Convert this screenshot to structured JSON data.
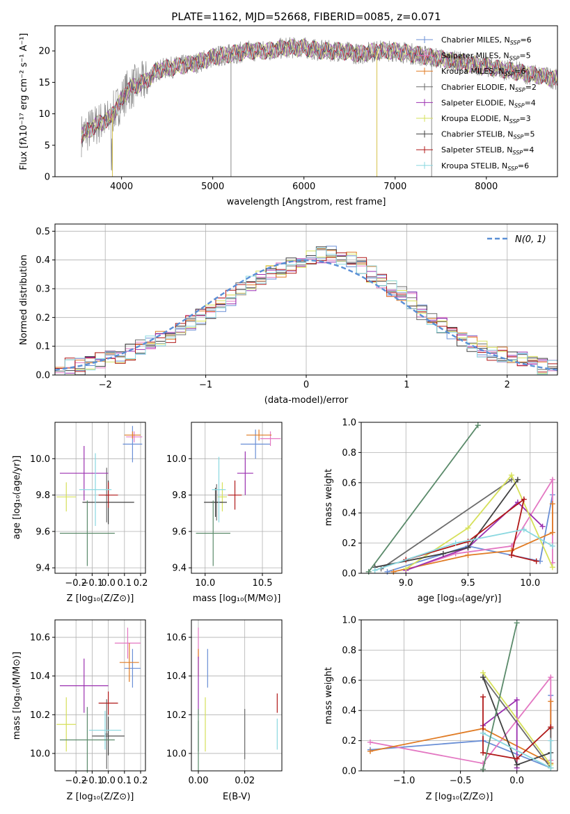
{
  "figure_title": "PLATE=1162, MJD=52668, FIBERID=0085, z=0.071",
  "legend_colors": [
    "#6a8fd6",
    "#e377c2",
    "#e07b24",
    "#6b6b6b",
    "#9b30b0",
    "#d6e05a",
    "#404040",
    "#b01818",
    "#8ad8e0"
  ],
  "model_colors": [
    "#6a8fd6",
    "#e377c2",
    "#e07b24",
    "#6b6b6b",
    "#9b30b0",
    "#d6e05a",
    "#404040",
    "#b01818",
    "#8ad8e0",
    "#5a8a6a"
  ],
  "chart_data": [
    {
      "type": "line",
      "id": "spectrum",
      "title": "PLATE=1162, MJD=52668, FIBERID=0085, z=0.071",
      "xlabel": "wavelength [Angstrom, rest frame]",
      "ylabel": "Flux [fλ10⁻¹⁷ erg cm⁻² s⁻¹ A⁻¹]",
      "xlim": [
        3270,
        8780
      ],
      "ylim": [
        0,
        24
      ],
      "xticks": [
        4000,
        5000,
        6000,
        7000,
        8000
      ],
      "yticks": [
        0,
        5,
        10,
        15,
        20
      ],
      "grid": false,
      "legend_position": "right",
      "continuum": {
        "x": [
          3550,
          3650,
          3750,
          3850,
          3950,
          4050,
          4150,
          4250,
          4400,
          4600,
          4800,
          5000,
          5200,
          5400,
          5600,
          5800,
          6000,
          6200,
          6400,
          6600,
          6800,
          7000,
          7200,
          7400,
          7600,
          7800,
          8000,
          8200,
          8400,
          8600,
          8780
        ],
        "y": [
          6.5,
          7.5,
          8.5,
          9.0,
          11.0,
          13.5,
          14.5,
          15.0,
          17.0,
          17.5,
          18.0,
          19.0,
          19.5,
          20.0,
          20.0,
          20.5,
          20.5,
          20.0,
          20.0,
          19.5,
          20.0,
          20.0,
          19.5,
          19.0,
          18.5,
          18.0,
          17.5,
          17.0,
          16.5,
          16.0,
          15.5
        ]
      },
      "series": [
        {
          "name": "Chabrier MILES, N",
          "sub": "SSP",
          "suffix": "=6"
        },
        {
          "name": "Salpeter MILES, N",
          "sub": "SSP",
          "suffix": "=5"
        },
        {
          "name": "Kroupa MILES, N",
          "sub": "SSP",
          "suffix": "=6"
        },
        {
          "name": "Chabrier ELODIE, N",
          "sub": "SSP",
          "suffix": "=2"
        },
        {
          "name": "Salpeter ELODIE, N",
          "sub": "SSP",
          "suffix": "=4"
        },
        {
          "name": "Kroupa ELODIE, N",
          "sub": "SSP",
          "suffix": "=3"
        },
        {
          "name": "Chabrier STELIB, N",
          "sub": "SSP",
          "suffix": "=5"
        },
        {
          "name": "Salpeter STELIB, N",
          "sub": "SSP",
          "suffix": "=4"
        },
        {
          "name": "Kroupa STELIB, N",
          "sub": "SSP",
          "suffix": "=6"
        }
      ]
    },
    {
      "type": "line",
      "id": "residuals",
      "xlabel": "(data-model)/error",
      "ylabel": "Normed distribution",
      "xlim": [
        -2.5,
        2.5
      ],
      "ylim": [
        0,
        0.525
      ],
      "xticks": [
        -2,
        -1,
        0,
        1,
        2
      ],
      "yticks": [
        0.0,
        0.1,
        0.2,
        0.3,
        0.4,
        0.5
      ],
      "grid": true,
      "legend": {
        "label": "N(0, 1)",
        "position": "top-right"
      },
      "gaussian": {
        "mean": 0,
        "sigma": 1
      },
      "bin_edges": [
        -2.5,
        -2.4,
        -2.3,
        -2.2,
        -2.1,
        -2.0,
        -1.9,
        -1.8,
        -1.7,
        -1.6,
        -1.5,
        -1.4,
        -1.3,
        -1.2,
        -1.1,
        -1.0,
        -0.9,
        -0.8,
        -0.7,
        -0.6,
        -0.5,
        -0.4,
        -0.3,
        -0.2,
        -0.1,
        0.0,
        0.1,
        0.2,
        0.3,
        0.4,
        0.5,
        0.6,
        0.7,
        0.8,
        0.9,
        1.0,
        1.1,
        1.2,
        1.3,
        1.4,
        1.5,
        1.6,
        1.7,
        1.8,
        1.9,
        2.0,
        2.1,
        2.2,
        2.3,
        2.4,
        2.5
      ],
      "hist_approx": [
        0.02,
        0.03,
        0.03,
        0.04,
        0.05,
        0.06,
        0.07,
        0.08,
        0.1,
        0.11,
        0.13,
        0.14,
        0.16,
        0.18,
        0.2,
        0.22,
        0.25,
        0.27,
        0.3,
        0.32,
        0.34,
        0.36,
        0.37,
        0.38,
        0.4,
        0.41,
        0.42,
        0.42,
        0.41,
        0.4,
        0.38,
        0.35,
        0.33,
        0.3,
        0.28,
        0.26,
        0.22,
        0.2,
        0.17,
        0.15,
        0.13,
        0.11,
        0.09,
        0.08,
        0.07,
        0.06,
        0.05,
        0.04,
        0.03,
        0.03
      ]
    },
    {
      "type": "scatter",
      "id": "age-vs-z",
      "xlabel": "Z [log₁₀(Z/Z⊙)]",
      "ylabel": "age  [log₁₀(age/yr)]",
      "xlim": [
        -0.33,
        0.23
      ],
      "ylim": [
        9.37,
        10.2
      ],
      "xticks": [
        -0.2,
        -0.1,
        0.0,
        0.1,
        0.2
      ],
      "yticks": [
        9.4,
        9.6,
        9.8,
        10.0
      ],
      "grid": true,
      "points": [
        {
          "x": 0.15,
          "y": 10.08,
          "dx": 0.06,
          "dy": 0.1,
          "c": 0
        },
        {
          "x": 0.16,
          "y": 10.12,
          "dx": 0.05,
          "dy": 0.03,
          "c": 1
        },
        {
          "x": 0.15,
          "y": 10.13,
          "dx": 0.05,
          "dy": 0.02,
          "c": 2
        },
        {
          "x": -0.01,
          "y": 9.8,
          "dx": 0.01,
          "dy": 0.15,
          "c": 3
        },
        {
          "x": -0.15,
          "y": 9.92,
          "dx": 0.15,
          "dy": 0.15,
          "c": 4
        },
        {
          "x": -0.26,
          "y": 9.79,
          "dx": 0.06,
          "dy": 0.08,
          "c": 5
        },
        {
          "x": 0.0,
          "y": 9.76,
          "dx": 0.16,
          "dy": 0.12,
          "c": 6
        },
        {
          "x": 0.0,
          "y": 9.8,
          "dx": 0.06,
          "dy": 0.07,
          "c": 7
        },
        {
          "x": -0.08,
          "y": 9.83,
          "dx": 0.1,
          "dy": 0.2,
          "c": 8
        },
        {
          "x": -0.13,
          "y": 9.59,
          "dx": 0.17,
          "dy": 0.18,
          "c": 9
        }
      ]
    },
    {
      "type": "scatter",
      "id": "age-vs-mass",
      "xlabel": "mass [log₁₀(M/M⊙)]",
      "ylabel": "",
      "xlim": [
        9.88,
        10.67
      ],
      "ylim": [
        9.37,
        10.2
      ],
      "xticks": [
        10.0,
        10.5
      ],
      "yticks": [
        9.4,
        9.6,
        9.8,
        10.0
      ],
      "grid": true,
      "points": [
        {
          "x": 10.44,
          "y": 10.08,
          "dx": 0.13,
          "dy": 0.08,
          "c": 0
        },
        {
          "x": 10.57,
          "y": 10.11,
          "dx": 0.09,
          "dy": 0.04,
          "c": 1
        },
        {
          "x": 10.47,
          "y": 10.13,
          "dx": 0.11,
          "dy": 0.03,
          "c": 2
        },
        {
          "x": 10.1,
          "y": 9.76,
          "dx": 0.05,
          "dy": 0.1,
          "c": 3
        },
        {
          "x": 10.35,
          "y": 9.92,
          "dx": 0.07,
          "dy": 0.12,
          "c": 4
        },
        {
          "x": 10.15,
          "y": 9.79,
          "dx": 0.04,
          "dy": 0.08,
          "c": 5
        },
        {
          "x": 10.09,
          "y": 9.76,
          "dx": 0.1,
          "dy": 0.08,
          "c": 6
        },
        {
          "x": 10.26,
          "y": 9.8,
          "dx": 0.06,
          "dy": 0.08,
          "c": 7
        },
        {
          "x": 10.12,
          "y": 9.83,
          "dx": 0.06,
          "dy": 0.18,
          "c": 8
        },
        {
          "x": 10.07,
          "y": 9.59,
          "dx": 0.15,
          "dy": 0.18,
          "c": 9
        }
      ]
    },
    {
      "type": "line",
      "id": "weight-vs-age",
      "xlabel": "age  [log₁₀(age/yr)]",
      "ylabel": "mass weight",
      "xlim": [
        8.64,
        10.22
      ],
      "ylim": [
        0,
        1.0
      ],
      "xticks": [
        9.0,
        9.5,
        10.0
      ],
      "yticks": [
        0.0,
        0.2,
        0.4,
        0.6,
        0.8,
        1.0
      ],
      "grid": true,
      "series": [
        {
          "c": 0,
          "x": [
            8.85,
            9.5,
            10.08,
            10.18
          ],
          "y": [
            0.01,
            0.18,
            0.08,
            0.52
          ]
        },
        {
          "c": 1,
          "x": [
            9.0,
            9.4,
            9.85,
            10.18,
            10.18
          ],
          "y": [
            0.02,
            0.13,
            0.18,
            0.62,
            0.07
          ]
        },
        {
          "c": 2,
          "x": [
            8.9,
            9.5,
            9.85,
            10.18,
            10.18
          ],
          "y": [
            0.01,
            0.12,
            0.15,
            0.27,
            0.46
          ]
        },
        {
          "c": 3,
          "x": [
            8.8,
            9.85
          ],
          "y": [
            0.03,
            0.62
          ]
        },
        {
          "c": 4,
          "x": [
            9.0,
            9.5,
            9.9,
            10.1
          ],
          "y": [
            0.02,
            0.17,
            0.47,
            0.31
          ]
        },
        {
          "c": 5,
          "x": [
            9.0,
            9.5,
            9.85,
            10.18
          ],
          "y": [
            0.03,
            0.3,
            0.65,
            0.04
          ]
        },
        {
          "c": 6,
          "x": [
            8.75,
            9.3,
            9.5,
            9.9
          ],
          "y": [
            0.04,
            0.13,
            0.17,
            0.62
          ]
        },
        {
          "c": 7,
          "x": [
            9.0,
            9.5,
            9.95,
            9.85,
            10.05
          ],
          "y": [
            0.09,
            0.21,
            0.49,
            0.12,
            0.08
          ]
        },
        {
          "c": 8,
          "x": [
            8.75,
            9.4,
            9.95,
            10.18
          ],
          "y": [
            0.02,
            0.2,
            0.29,
            0.18
          ]
        },
        {
          "c": 9,
          "x": [
            8.7,
            9.58
          ],
          "y": [
            0.01,
            0.98
          ]
        }
      ]
    },
    {
      "type": "scatter",
      "id": "mass-vs-z",
      "xlabel": "Z [log₁₀(Z/Z⊙)]",
      "ylabel": "mass [log₁₀(M/M⊙)]",
      "xlim": [
        -0.33,
        0.23
      ],
      "ylim": [
        9.91,
        10.69
      ],
      "xticks": [
        -0.2,
        -0.1,
        0.0,
        0.1,
        0.2
      ],
      "yticks": [
        10.0,
        10.2,
        10.4,
        10.6
      ],
      "grid": true,
      "points": [
        {
          "x": 0.15,
          "y": 10.44,
          "dx": 0.05,
          "dy": 0.1,
          "c": 0
        },
        {
          "x": 0.12,
          "y": 10.57,
          "dx": 0.08,
          "dy": 0.08,
          "c": 1
        },
        {
          "x": 0.13,
          "y": 10.47,
          "dx": 0.06,
          "dy": 0.1,
          "c": 2
        },
        {
          "x": -0.01,
          "y": 10.1,
          "dx": 0.01,
          "dy": 0.18,
          "c": 3
        },
        {
          "x": -0.15,
          "y": 10.35,
          "dx": 0.15,
          "dy": 0.14,
          "c": 4
        },
        {
          "x": -0.26,
          "y": 10.15,
          "dx": 0.06,
          "dy": 0.14,
          "c": 5
        },
        {
          "x": 0.0,
          "y": 10.09,
          "dx": 0.1,
          "dy": 0.1,
          "c": 6
        },
        {
          "x": 0.0,
          "y": 10.26,
          "dx": 0.06,
          "dy": 0.06,
          "c": 7
        },
        {
          "x": -0.02,
          "y": 10.12,
          "dx": 0.1,
          "dy": 0.1,
          "c": 8
        },
        {
          "x": -0.13,
          "y": 10.07,
          "dx": 0.17,
          "dy": 0.17,
          "c": 9
        }
      ]
    },
    {
      "type": "scatter",
      "id": "mass-vs-ebv",
      "xlabel": "E(B-V)",
      "ylabel": "",
      "xlim": [
        -0.003,
        0.036
      ],
      "ylim": [
        9.91,
        10.69
      ],
      "xticks": [
        0.0,
        0.02
      ],
      "yticks": [
        10.0,
        10.2,
        10.4,
        10.6
      ],
      "grid": true,
      "points": [
        {
          "x": 0.004,
          "y": 10.44,
          "dx": 0,
          "dy": 0.1,
          "c": 0
        },
        {
          "x": 0.0,
          "y": 10.57,
          "dx": 0,
          "dy": 0.08,
          "c": 1
        },
        {
          "x": 0.0,
          "y": 10.47,
          "dx": 0,
          "dy": 0.07,
          "c": 2
        },
        {
          "x": 0.02,
          "y": 10.1,
          "dx": 0,
          "dy": 0.13,
          "c": 3
        },
        {
          "x": 0.0,
          "y": 10.35,
          "dx": 0,
          "dy": 0.15,
          "c": 4
        },
        {
          "x": 0.003,
          "y": 10.15,
          "dx": 0,
          "dy": 0.14,
          "c": 5
        },
        {
          "x": 0.0,
          "y": 10.09,
          "dx": 0,
          "dy": 0.08,
          "c": 6
        },
        {
          "x": 0.034,
          "y": 10.26,
          "dx": 0,
          "dy": 0.05,
          "c": 7
        },
        {
          "x": 0.034,
          "y": 10.1,
          "dx": 0,
          "dy": 0.08,
          "c": 8
        },
        {
          "x": 0.0,
          "y": 10.07,
          "dx": 0,
          "dy": 0.16,
          "c": 9
        }
      ]
    },
    {
      "type": "line",
      "id": "weight-vs-z",
      "xlabel": "Z [log₁₀(Z/Z⊙)]",
      "ylabel": "mass weight",
      "xlim": [
        -1.38,
        0.36
      ],
      "ylim": [
        0,
        1.0
      ],
      "xticks": [
        -1.0,
        -0.5,
        0.0
      ],
      "yticks": [
        0.0,
        0.2,
        0.4,
        0.6,
        0.8,
        1.0
      ],
      "grid": true,
      "series": [
        {
          "c": 0,
          "x": [
            -1.3,
            -0.3,
            0.3,
            0.3
          ],
          "y": [
            0.14,
            0.2,
            0.02,
            0.5
          ]
        },
        {
          "c": 1,
          "x": [
            -1.3,
            -0.3,
            0.3,
            0.3
          ],
          "y": [
            0.19,
            0.05,
            0.62,
            0.07
          ]
        },
        {
          "c": 2,
          "x": [
            -1.3,
            -0.3,
            0.3,
            0.3
          ],
          "y": [
            0.13,
            0.28,
            0.05,
            0.46
          ]
        },
        {
          "c": 3,
          "x": [
            -0.3,
            0.3,
            0.3
          ],
          "y": [
            0.62,
            0.02,
            0.28
          ]
        },
        {
          "c": 4,
          "x": [
            -0.3,
            0.0,
            0.0
          ],
          "y": [
            0.3,
            0.47,
            0.02
          ]
        },
        {
          "c": 5,
          "x": [
            -0.3,
            0.3,
            0.3
          ],
          "y": [
            0.65,
            0.04,
            0.02
          ]
        },
        {
          "c": 6,
          "x": [
            -0.3,
            0.0,
            0.3
          ],
          "y": [
            0.62,
            0.04,
            0.12
          ]
        },
        {
          "c": 7,
          "x": [
            -0.3,
            -0.3,
            0.0,
            0.3
          ],
          "y": [
            0.49,
            0.12,
            0.08,
            0.29
          ]
        },
        {
          "c": 8,
          "x": [
            -0.3,
            0.3,
            0.3
          ],
          "y": [
            0.25,
            0.02,
            0.2
          ]
        },
        {
          "c": 9,
          "x": [
            -0.3,
            0.0
          ],
          "y": [
            0.01,
            0.98
          ]
        }
      ]
    }
  ]
}
